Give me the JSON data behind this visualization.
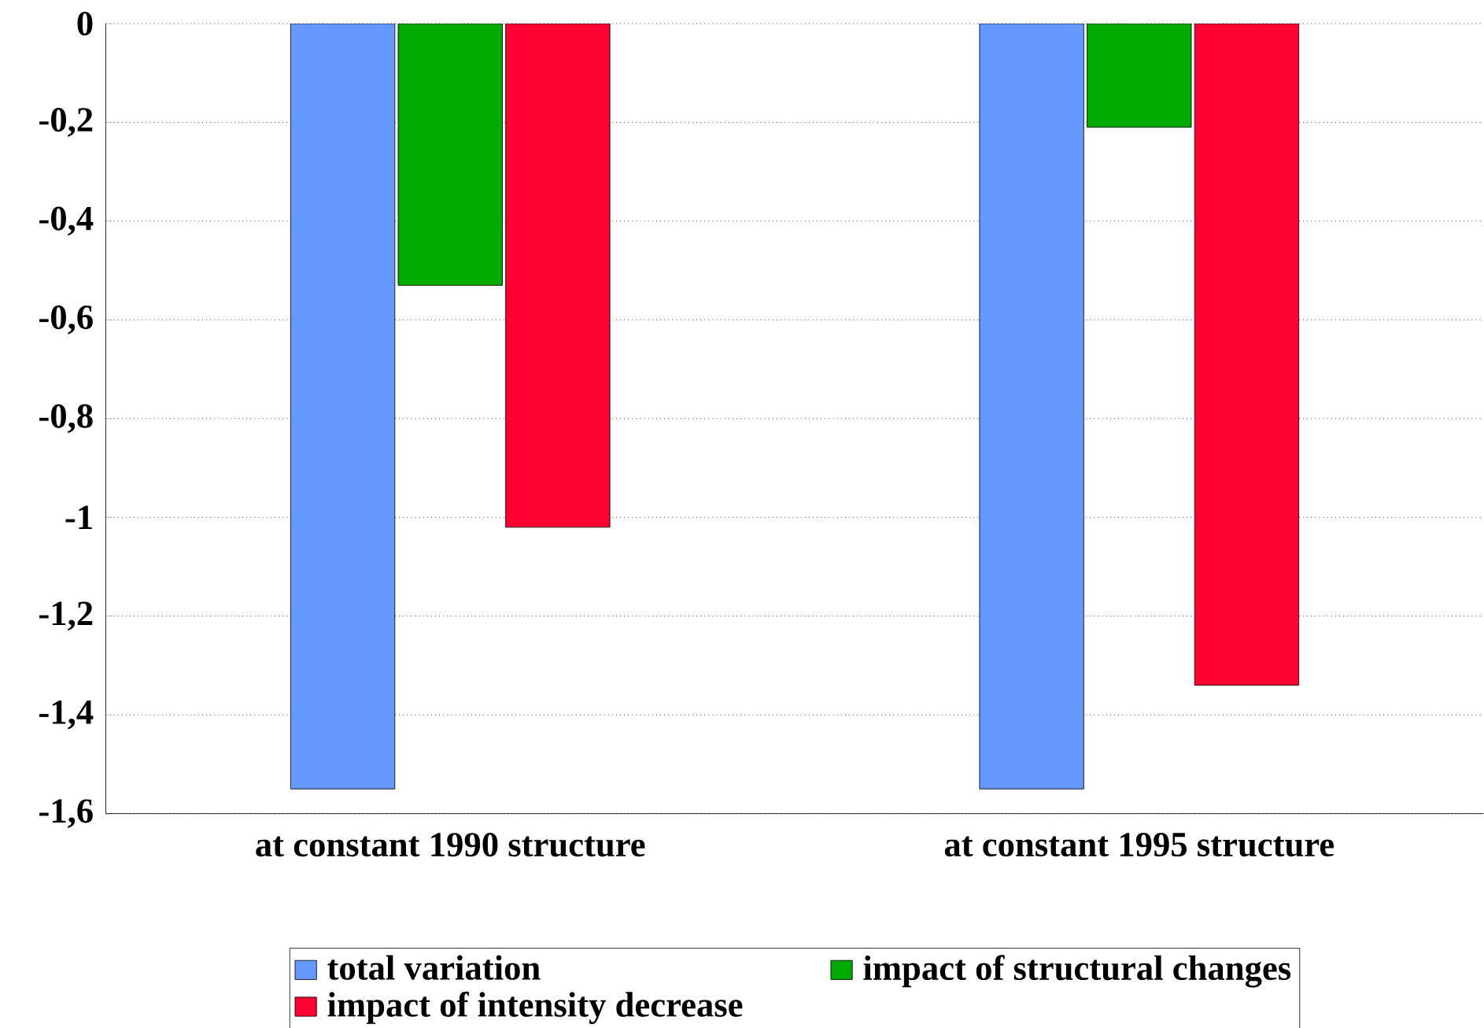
{
  "chart_data": {
    "type": "bar",
    "categories": [
      "at constant 1990 structure",
      "at constant 1995 structure"
    ],
    "series": [
      {
        "name": "total variation",
        "color": "#6699ff",
        "values": [
          -1.55,
          -1.55
        ]
      },
      {
        "name": "impact of structural changes",
        "color": "#00aa00",
        "values": [
          -0.53,
          -0.21
        ]
      },
      {
        "name": "impact of intensity decrease",
        "color": "#ff0033",
        "values": [
          -1.02,
          -1.34
        ]
      }
    ],
    "ylim": [
      -1.6,
      0
    ],
    "yticks": [
      {
        "value": -1.6,
        "label": "-1,6"
      },
      {
        "value": -1.4,
        "label": "-1,4"
      },
      {
        "value": -1.2,
        "label": "-1,2"
      },
      -1,
      {
        "value": -0.8,
        "label": "-0,8"
      },
      {
        "value": -0.6,
        "label": "-0,6"
      },
      {
        "value": -0.4,
        "label": "-0,4"
      },
      {
        "value": -0.2,
        "label": "-0,2"
      },
      0
    ],
    "grid": "y",
    "legend": "bottom"
  }
}
